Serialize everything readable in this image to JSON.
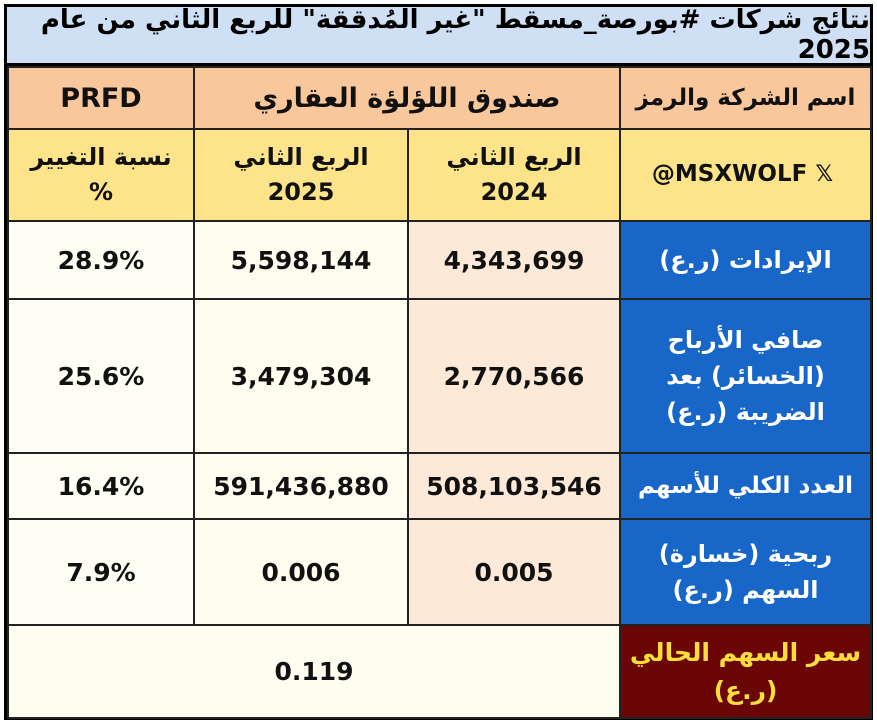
{
  "title": "نتائج شركات #بورصة_مسقط \"غير المُدققة\" للربع الثاني من عام 2025",
  "header": {
    "symbol": "PRFD",
    "company_name": "صندوق اللؤلؤة العقاري",
    "name_label": "اسم الشركة والرمز"
  },
  "subheader": {
    "change_line1": "نسبة التغيير",
    "change_line2": "%",
    "q2_2025_line1": "الربع الثاني",
    "q2_2025_line2": "2025",
    "q2_2024_line1": "الربع الثاني",
    "q2_2024_line2": "2024",
    "handle": "@MSXWOLF",
    "x_icon": "𝕏"
  },
  "rows": [
    {
      "label_line1": "الإيرادات (ر.ع)",
      "label_line2": "",
      "label_line3": "",
      "change": "28.9%",
      "q2_2025": "5,598,144",
      "q2_2024": "4,343,699"
    },
    {
      "label_line1": "صافي الأرباح",
      "label_line2": "(الخسائر) بعد",
      "label_line3": "الضريبة (ر.ع)",
      "change": "25.6%",
      "q2_2025": "3,479,304",
      "q2_2024": "2,770,566"
    },
    {
      "label_line1": "العدد الكلي للأسهم",
      "label_line2": "",
      "label_line3": "",
      "change": "16.4%",
      "q2_2025": "591,436,880",
      "q2_2024": "508,103,546"
    },
    {
      "label_line1": "ربحية (خسارة)",
      "label_line2": "السهم (ر.ع)",
      "label_line3": "",
      "change": "7.9%",
      "q2_2025": "0.006",
      "q2_2024": "0.005"
    }
  ],
  "price": {
    "label_line1": "سعر السهم الحالي",
    "label_line2": "(ر.ع)",
    "value": "0.119"
  }
}
